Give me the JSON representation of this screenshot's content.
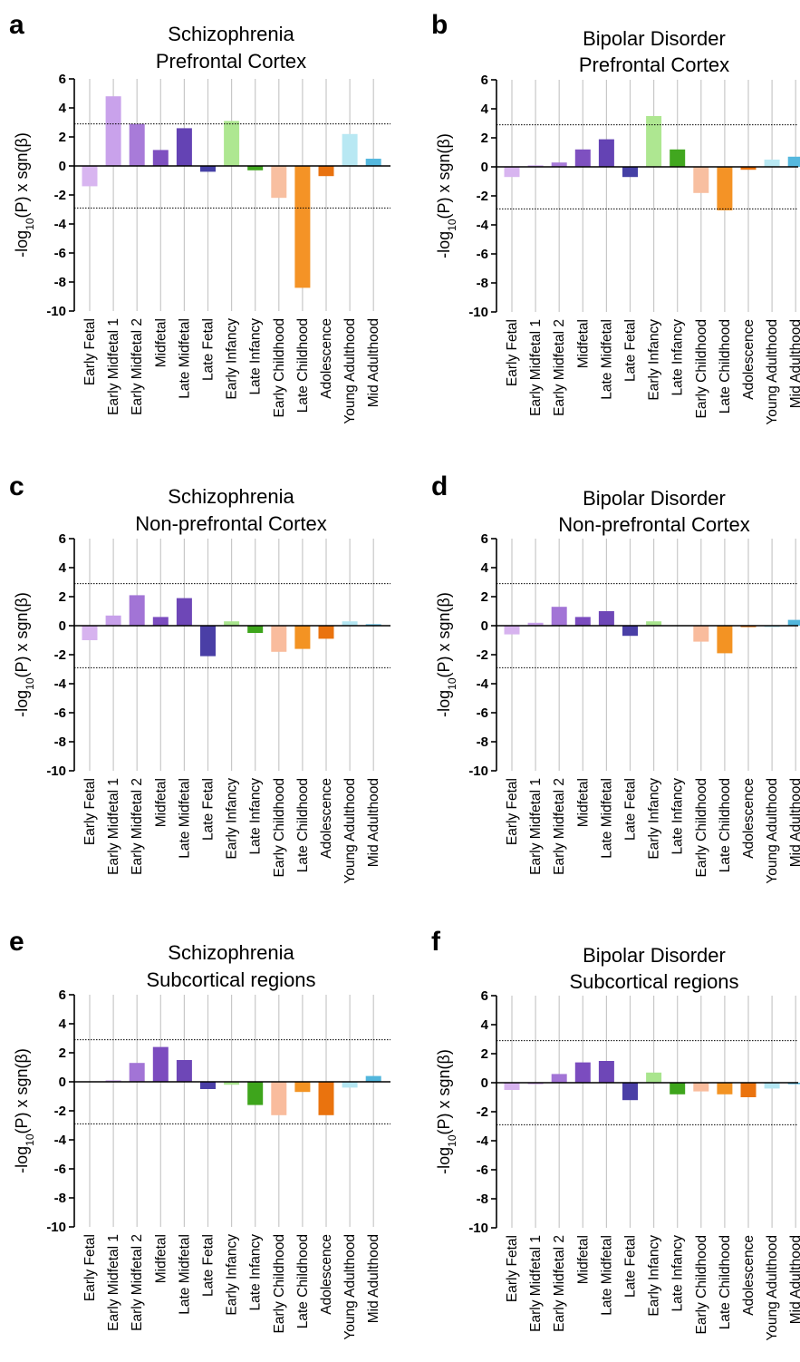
{
  "y_axis_label": {
    "prefix": "-log",
    "subscript": "10",
    "suffix": "(P) x sgn(β)"
  },
  "categories": [
    "Early Fetal",
    "Early Midfetal 1",
    "Early Midfetal 2",
    "Midfetal",
    "Late Midfetal",
    "Late Fetal",
    "Early Infancy",
    "Late Infancy",
    "Early Childhood",
    "Late Childhood",
    "Adolescence",
    "Young Adulthood",
    "Mid Adulthood"
  ],
  "colors": {
    "light": [
      "#d7b3ef",
      "#c7a0ea",
      "#a274d6",
      "#7b4cbf",
      "#6e47b7",
      "#4a3fa6",
      "#a9e58e",
      "#3ea51c",
      "#f9bc9d",
      "#f39323",
      "#ea730e",
      "#b4e6f2",
      "#52b6dc"
    ],
    "prefrontal": [
      "#d8b5f0",
      "#c9a2eb",
      "#a87bd9",
      "#7e50c0",
      "#6443b4",
      "#4540a5",
      "#aee791",
      "#41a71f",
      "#f8bfa0",
      "#f49326",
      "#e8720f",
      "#b8e8f3",
      "#55b8de"
    ],
    "threshold_line": "#000000",
    "grid": "#c8c8c8"
  },
  "chart_data": [
    {
      "panel": "a",
      "type": "bar",
      "title": [
        "Schizophrenia",
        "Prefrontal Cortex"
      ],
      "ylim": [
        -10,
        6
      ],
      "yticks": [
        6,
        4,
        2,
        0,
        -2,
        -4,
        -6,
        -8,
        -10
      ],
      "thresholds": [
        2.9,
        -2.9
      ],
      "values": [
        -1.4,
        4.8,
        2.9,
        1.1,
        2.6,
        -0.4,
        3.1,
        -0.3,
        -2.2,
        -8.4,
        -0.7,
        2.2,
        0.5
      ]
    },
    {
      "panel": "b",
      "type": "bar",
      "title": [
        "Bipolar Disorder",
        "Prefrontal Cortex"
      ],
      "ylim": [
        -10,
        6
      ],
      "yticks": [
        6,
        4,
        2,
        0,
        -2,
        -4,
        -6,
        -8,
        -10
      ],
      "thresholds": [
        2.9,
        -2.9
      ],
      "values": [
        -0.7,
        0.1,
        0.3,
        1.2,
        1.9,
        -0.7,
        3.5,
        1.2,
        -1.8,
        -3.0,
        -0.2,
        0.5,
        0.7
      ]
    },
    {
      "panel": "c",
      "type": "bar",
      "title": [
        "Schizophrenia",
        "Non-prefrontal Cortex"
      ],
      "ylim": [
        -10,
        6
      ],
      "yticks": [
        6,
        4,
        2,
        0,
        -2,
        -4,
        -6,
        -8,
        -10
      ],
      "thresholds": [
        2.9,
        -2.9
      ],
      "values": [
        -1.0,
        0.7,
        2.1,
        0.6,
        1.9,
        -2.1,
        0.3,
        -0.5,
        -1.8,
        -1.6,
        -0.9,
        0.3,
        0.1
      ]
    },
    {
      "panel": "d",
      "type": "bar",
      "title": [
        "Bipolar Disorder",
        "Non-prefrontal Cortex"
      ],
      "ylim": [
        -10,
        6
      ],
      "yticks": [
        6,
        4,
        2,
        0,
        -2,
        -4,
        -6,
        -8,
        -10
      ],
      "thresholds": [
        2.9,
        -2.9
      ],
      "values": [
        -0.6,
        0.2,
        1.3,
        0.6,
        1.0,
        -0.7,
        0.3,
        0.0,
        -1.1,
        -1.9,
        -0.1,
        -0.1,
        0.4
      ]
    },
    {
      "panel": "e",
      "type": "bar",
      "title": [
        "Schizophrenia",
        "Subcortical regions"
      ],
      "ylim": [
        -10,
        6
      ],
      "yticks": [
        6,
        4,
        2,
        0,
        -2,
        -4,
        -6,
        -8,
        -10
      ],
      "thresholds": [
        2.9,
        -2.9
      ],
      "values": [
        0.0,
        0.1,
        1.3,
        2.4,
        1.5,
        -0.5,
        -0.2,
        -1.6,
        -2.3,
        -0.7,
        -2.3,
        -0.4,
        0.4
      ]
    },
    {
      "panel": "f",
      "type": "bar",
      "title": [
        "Bipolar Disorder",
        "Subcortical regions"
      ],
      "ylim": [
        -10,
        6
      ],
      "yticks": [
        6,
        4,
        2,
        0,
        -2,
        -4,
        -6,
        -8,
        -10
      ],
      "thresholds": [
        2.9,
        -2.9
      ],
      "values": [
        -0.5,
        -0.1,
        0.6,
        1.4,
        1.5,
        -1.2,
        0.7,
        -0.8,
        -0.6,
        -0.8,
        -1.0,
        -0.4,
        -0.1
      ]
    }
  ]
}
